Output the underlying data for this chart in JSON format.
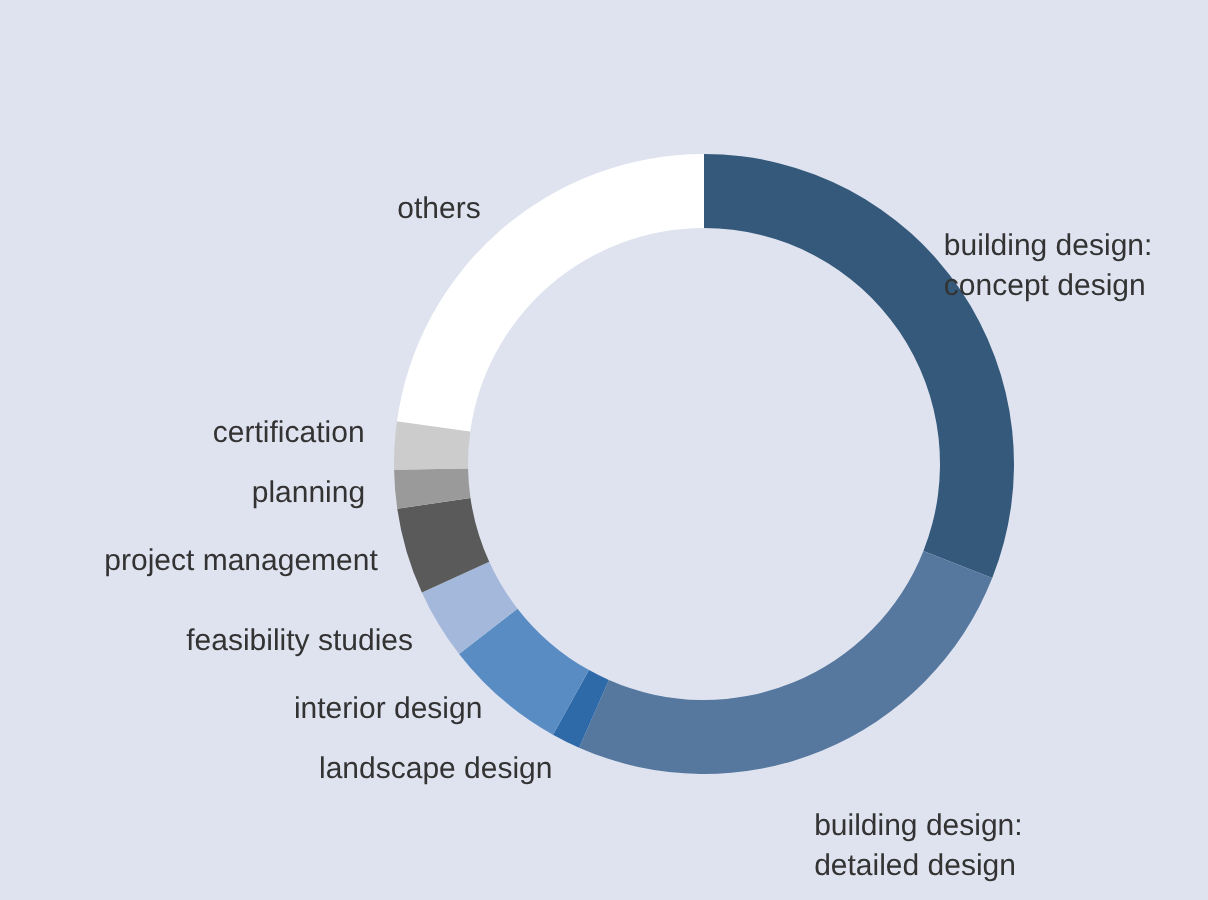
{
  "chart_data": {
    "type": "donut",
    "categories": [
      "building design:\nconcept design",
      "building design:\ndetailed design",
      "landscape design",
      "interior design",
      "feasibility studies",
      "project management",
      "planning",
      "certification",
      "others"
    ],
    "values": [
      31,
      25.6,
      1.5,
      6.4,
      3.7,
      4.5,
      2,
      2.5,
      22.8
    ],
    "colors": [
      "#34597a",
      "#56789e",
      "#2e6aa8",
      "#5a8cc4",
      "#a3b8da",
      "#5a5a5a",
      "#9a9a9a",
      "#cccccc",
      "#ffffff"
    ]
  }
}
